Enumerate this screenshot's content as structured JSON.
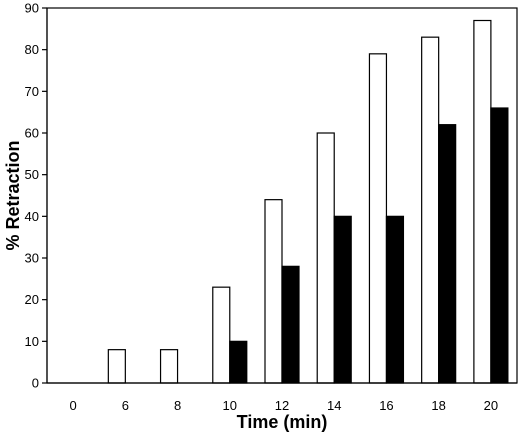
{
  "chart_data": {
    "type": "bar",
    "title": "",
    "xlabel": "Time (min)",
    "ylabel": "% Retraction",
    "categories": [
      "0",
      "6",
      "8",
      "10",
      "12",
      "14",
      "16",
      "18",
      "20"
    ],
    "ylim": [
      0,
      90
    ],
    "yticks": [
      0,
      10,
      20,
      30,
      40,
      50,
      60,
      70,
      80,
      90
    ],
    "grid": false,
    "legend": "none",
    "series": [
      {
        "fill": "#ffffff",
        "values": [
          0,
          8,
          8,
          23,
          44,
          60,
          79,
          83,
          87
        ]
      },
      {
        "fill": "#000000",
        "values": [
          0,
          0,
          0,
          10,
          28,
          40,
          40,
          62,
          66
        ]
      }
    ]
  }
}
